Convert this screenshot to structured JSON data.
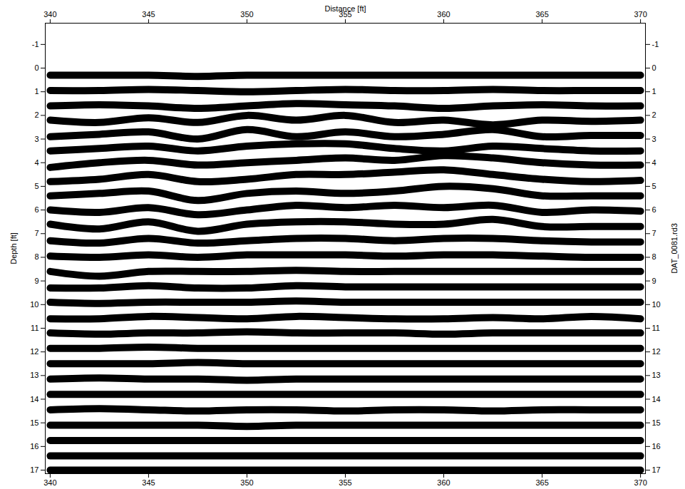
{
  "chart_data": {
    "type": "line",
    "x_label": "Distance [ft]",
    "y_label": "Depth [ft]",
    "y2_label": "DAT_0081.rd3",
    "color": "#000000",
    "xlim": [
      339.75,
      370.25
    ],
    "xticks": [
      340,
      345,
      350,
      355,
      360,
      365,
      370
    ],
    "ylim": [
      -1.9,
      17.15
    ],
    "yticks": [
      -1,
      0,
      1,
      2,
      3,
      4,
      5,
      6,
      7,
      8,
      9,
      10,
      11,
      12,
      13,
      14,
      15,
      16,
      17
    ],
    "y2ticks": [
      -1,
      0,
      1,
      2,
      3,
      4,
      5,
      6,
      7,
      8,
      9,
      10,
      11,
      12,
      13,
      14,
      15,
      16,
      17
    ],
    "x": [
      340,
      342.5,
      345,
      347.5,
      350,
      352.5,
      355,
      357.5,
      360,
      362.5,
      365,
      367.5,
      370
    ],
    "series": [
      {
        "values": [
          0.3,
          0.3,
          0.3,
          0.35,
          0.3,
          0.3,
          0.3,
          0.3,
          0.3,
          0.3,
          0.3,
          0.3,
          0.3
        ]
      },
      {
        "values": [
          0.95,
          0.95,
          0.9,
          0.95,
          1.0,
          0.95,
          0.9,
          0.95,
          0.95,
          0.9,
          0.95,
          0.95,
          0.95
        ]
      },
      {
        "values": [
          1.6,
          1.55,
          1.6,
          1.7,
          1.6,
          1.5,
          1.55,
          1.6,
          1.7,
          1.6,
          1.55,
          1.6,
          1.6
        ]
      },
      {
        "values": [
          2.2,
          2.3,
          2.1,
          2.3,
          2.0,
          2.2,
          2.0,
          2.3,
          2.2,
          2.4,
          2.2,
          2.25,
          2.2
        ]
      },
      {
        "values": [
          2.9,
          2.8,
          2.7,
          3.0,
          2.6,
          2.9,
          2.7,
          2.9,
          2.8,
          2.6,
          2.9,
          2.85,
          2.85
        ]
      },
      {
        "values": [
          3.5,
          3.4,
          3.3,
          3.5,
          3.3,
          3.2,
          3.2,
          3.4,
          3.5,
          3.3,
          3.4,
          3.5,
          3.5
        ]
      },
      {
        "values": [
          4.2,
          4.0,
          3.9,
          4.1,
          4.0,
          3.9,
          3.8,
          3.9,
          3.7,
          3.8,
          4.0,
          4.1,
          4.1
        ]
      },
      {
        "values": [
          4.8,
          4.7,
          4.5,
          4.8,
          4.7,
          4.5,
          4.5,
          4.4,
          4.3,
          4.5,
          4.7,
          4.8,
          4.75
        ]
      },
      {
        "values": [
          5.4,
          5.3,
          5.2,
          5.6,
          5.3,
          5.2,
          5.3,
          5.2,
          5.0,
          5.1,
          5.4,
          5.4,
          5.4
        ]
      },
      {
        "values": [
          6.0,
          6.1,
          5.9,
          6.2,
          6.0,
          5.8,
          5.9,
          5.8,
          5.9,
          5.8,
          6.1,
          6.0,
          6.05
        ]
      },
      {
        "values": [
          6.6,
          6.8,
          6.5,
          6.9,
          6.6,
          6.5,
          6.5,
          6.6,
          6.6,
          6.4,
          6.7,
          6.7,
          6.7
        ]
      },
      {
        "values": [
          7.3,
          7.4,
          7.2,
          7.4,
          7.3,
          7.2,
          7.2,
          7.3,
          7.2,
          7.2,
          7.3,
          7.35,
          7.35
        ]
      },
      {
        "values": [
          7.95,
          8.0,
          7.9,
          8.0,
          7.9,
          7.9,
          7.9,
          7.95,
          7.9,
          7.9,
          7.95,
          8.0,
          8.0
        ]
      },
      {
        "values": [
          8.6,
          8.8,
          8.6,
          8.6,
          8.6,
          8.55,
          8.6,
          8.6,
          8.6,
          8.6,
          8.6,
          8.6,
          8.6
        ]
      },
      {
        "values": [
          9.3,
          9.3,
          9.2,
          9.3,
          9.3,
          9.2,
          9.25,
          9.25,
          9.25,
          9.25,
          9.25,
          9.25,
          9.25
        ]
      },
      {
        "values": [
          9.9,
          9.95,
          9.9,
          9.9,
          9.9,
          9.85,
          9.9,
          9.9,
          9.9,
          9.9,
          9.9,
          9.9,
          9.9
        ]
      },
      {
        "values": [
          10.6,
          10.6,
          10.5,
          10.55,
          10.6,
          10.5,
          10.55,
          10.6,
          10.6,
          10.55,
          10.6,
          10.5,
          10.6
        ]
      },
      {
        "values": [
          11.2,
          11.25,
          11.2,
          11.2,
          11.15,
          11.2,
          11.2,
          11.2,
          11.25,
          11.2,
          11.2,
          11.2,
          11.2
        ]
      },
      {
        "values": [
          11.85,
          11.85,
          11.8,
          11.85,
          11.85,
          11.85,
          11.85,
          11.85,
          11.85,
          11.85,
          11.85,
          11.85,
          11.85
        ]
      },
      {
        "values": [
          12.5,
          12.5,
          12.5,
          12.45,
          12.5,
          12.5,
          12.5,
          12.5,
          12.5,
          12.5,
          12.5,
          12.5,
          12.5
        ]
      },
      {
        "values": [
          13.15,
          13.1,
          13.15,
          13.15,
          13.2,
          13.15,
          13.15,
          13.15,
          13.15,
          13.15,
          13.15,
          13.15,
          13.15
        ]
      },
      {
        "values": [
          13.8,
          13.8,
          13.8,
          13.8,
          13.8,
          13.8,
          13.8,
          13.8,
          13.8,
          13.8,
          13.8,
          13.8,
          13.8
        ]
      },
      {
        "values": [
          14.45,
          14.4,
          14.45,
          14.5,
          14.45,
          14.45,
          14.5,
          14.45,
          14.45,
          14.5,
          14.45,
          14.45,
          14.45
        ]
      },
      {
        "values": [
          15.1,
          15.1,
          15.1,
          15.1,
          15.15,
          15.1,
          15.1,
          15.1,
          15.1,
          15.1,
          15.1,
          15.1,
          15.1
        ]
      },
      {
        "values": [
          15.75,
          15.75,
          15.75,
          15.75,
          15.75,
          15.75,
          15.75,
          15.75,
          15.75,
          15.75,
          15.75,
          15.75,
          15.75
        ]
      },
      {
        "values": [
          16.4,
          16.4,
          16.4,
          16.4,
          16.4,
          16.4,
          16.4,
          16.4,
          16.4,
          16.4,
          16.4,
          16.4,
          16.4
        ]
      },
      {
        "values": [
          17.0,
          17.0,
          17.0,
          17.0,
          17.0,
          17.0,
          17.0,
          17.0,
          17.0,
          17.0,
          17.0,
          17.0,
          17.0
        ]
      }
    ]
  }
}
